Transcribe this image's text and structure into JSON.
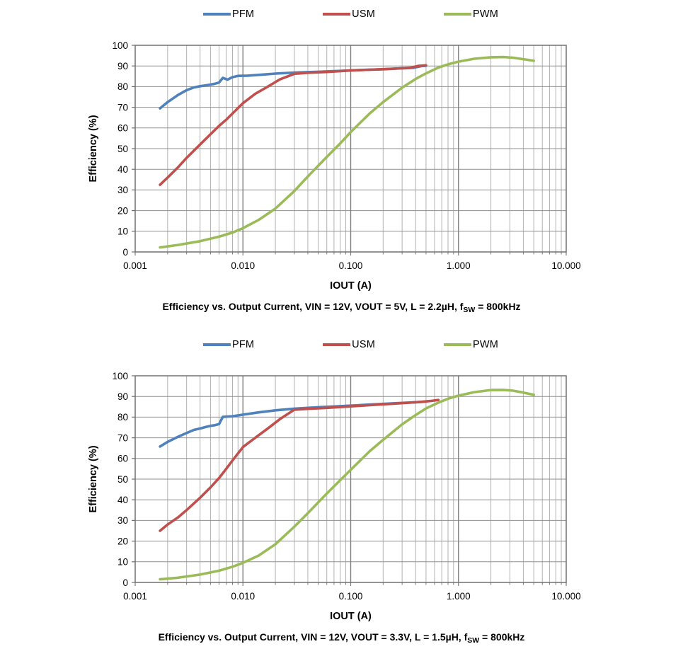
{
  "page": {
    "background": "#ffffff"
  },
  "style": {
    "grid_minor_color": "#b2b2b2",
    "grid_major_color": "#7f7f7f",
    "grid_h_color": "#8f8f8f",
    "border_color": "#707070",
    "text_color": "#000000",
    "series_stroke_width": 3.6
  },
  "chart_data": [
    {
      "type": "line",
      "title": "Efficiency vs. Output Current, VIN = 12V, VOUT = 5V, L = 2.2µH, fSW = 800kHz",
      "caption_parts": {
        "prefix": "Efficiency vs. Output Current, VIN = 12V, VOUT = 5V, L = 2.2µH, f",
        "sub": "SW",
        "suffix": " = 800kHz"
      },
      "xlabel": "IOUT (A)",
      "ylabel": "Efficiency  (%)",
      "xscale": "log",
      "xlim": [
        0.001,
        10
      ],
      "ylim": [
        0,
        100
      ],
      "x_tick_labels": [
        "0.001",
        "0.010",
        "0.100",
        "1.000",
        "10.000"
      ],
      "y_ticks": [
        0,
        10,
        20,
        30,
        40,
        50,
        60,
        70,
        80,
        90,
        100
      ],
      "grid": "major+minor",
      "legend_position": "top",
      "series": [
        {
          "name": "PFM",
          "color": "#4F81BD",
          "points": [
            [
              0.0017,
              69.5
            ],
            [
              0.002,
              72.5
            ],
            [
              0.0025,
              76
            ],
            [
              0.003,
              78.3
            ],
            [
              0.0035,
              79.6
            ],
            [
              0.004,
              80.2
            ],
            [
              0.0045,
              80.6
            ],
            [
              0.005,
              81.0
            ],
            [
              0.0055,
              81.4
            ],
            [
              0.006,
              82.0
            ],
            [
              0.0065,
              84.2
            ],
            [
              0.0072,
              83.4
            ],
            [
              0.008,
              84.6
            ],
            [
              0.009,
              85.2
            ],
            [
              0.011,
              85.3
            ],
            [
              0.014,
              85.7
            ],
            [
              0.02,
              86.3
            ],
            [
              0.03,
              86.8
            ],
            [
              0.05,
              87.2
            ],
            [
              0.08,
              87.6
            ],
            [
              0.12,
              88.0
            ],
            [
              0.2,
              88.4
            ],
            [
              0.3,
              88.9
            ],
            [
              0.38,
              89.1
            ],
            [
              0.45,
              89.9
            ],
            [
              0.5,
              90.1
            ]
          ]
        },
        {
          "name": "USM",
          "color": "#C0504D",
          "points": [
            [
              0.0017,
              32.5
            ],
            [
              0.002,
              36
            ],
            [
              0.0025,
              41
            ],
            [
              0.003,
              45.5
            ],
            [
              0.004,
              52
            ],
            [
              0.005,
              57
            ],
            [
              0.006,
              61
            ],
            [
              0.007,
              64
            ],
            [
              0.008,
              67
            ],
            [
              0.01,
              72
            ],
            [
              0.013,
              76.5
            ],
            [
              0.017,
              80
            ],
            [
              0.022,
              83.5
            ],
            [
              0.03,
              86.2
            ],
            [
              0.04,
              86.7
            ],
            [
              0.06,
              87.1
            ],
            [
              0.1,
              87.8
            ],
            [
              0.15,
              88.2
            ],
            [
              0.25,
              88.7
            ],
            [
              0.35,
              89.0
            ],
            [
              0.42,
              90.0
            ],
            [
              0.5,
              90.3
            ]
          ]
        },
        {
          "name": "PWM",
          "color": "#9BBB59",
          "points": [
            [
              0.0017,
              2.2
            ],
            [
              0.0025,
              3.4
            ],
            [
              0.004,
              5.2
            ],
            [
              0.006,
              7.4
            ],
            [
              0.008,
              9.4
            ],
            [
              0.01,
              11.5
            ],
            [
              0.014,
              15.5
            ],
            [
              0.02,
              21
            ],
            [
              0.03,
              29.5
            ],
            [
              0.04,
              36.5
            ],
            [
              0.06,
              46
            ],
            [
              0.08,
              52.5
            ],
            [
              0.1,
              58
            ],
            [
              0.15,
              67
            ],
            [
              0.2,
              72.5
            ],
            [
              0.3,
              79.5
            ],
            [
              0.4,
              83.7
            ],
            [
              0.5,
              86.4
            ],
            [
              0.65,
              89.2
            ],
            [
              0.8,
              90.8
            ],
            [
              1.0,
              92.1
            ],
            [
              1.4,
              93.5
            ],
            [
              2.0,
              94.2
            ],
            [
              2.6,
              94.3
            ],
            [
              3.2,
              94.0
            ],
            [
              4.0,
              93.3
            ],
            [
              5.0,
              92.5
            ]
          ]
        }
      ]
    },
    {
      "type": "line",
      "title": "Efficiency vs. Output Current, VIN = 12V, VOUT = 3.3V, L = 1.5µH, fSW = 800kHz",
      "caption_parts": {
        "prefix": "Efficiency vs. Output Current, VIN = 12V, VOUT = 3.3V, L = 1.5µH, f",
        "sub": "SW",
        "suffix": " = 800kHz"
      },
      "xlabel": "IOUT (A)",
      "ylabel": "Efficiency  (%)",
      "xscale": "log",
      "xlim": [
        0.001,
        10
      ],
      "ylim": [
        0,
        100
      ],
      "x_tick_labels": [
        "0.001",
        "0.010",
        "0.100",
        "1.000",
        "10.000"
      ],
      "y_ticks": [
        0,
        10,
        20,
        30,
        40,
        50,
        60,
        70,
        80,
        90,
        100
      ],
      "grid": "major+minor",
      "legend_position": "top",
      "series": [
        {
          "name": "PFM",
          "color": "#4F81BD",
          "points": [
            [
              0.0017,
              65.8
            ],
            [
              0.002,
              68
            ],
            [
              0.0025,
              70.5
            ],
            [
              0.003,
              72.3
            ],
            [
              0.0035,
              73.8
            ],
            [
              0.004,
              74.5
            ],
            [
              0.0045,
              75.2
            ],
            [
              0.005,
              75.8
            ],
            [
              0.0055,
              76.1
            ],
            [
              0.006,
              76.6
            ],
            [
              0.0065,
              80.1
            ],
            [
              0.008,
              80.4
            ],
            [
              0.01,
              81.2
            ],
            [
              0.014,
              82.3
            ],
            [
              0.02,
              83.3
            ],
            [
              0.03,
              84.1
            ],
            [
              0.05,
              84.8
            ],
            [
              0.08,
              85.3
            ],
            [
              0.12,
              85.8
            ],
            [
              0.2,
              86.4
            ],
            [
              0.3,
              86.9
            ],
            [
              0.4,
              87.2
            ],
            [
              0.5,
              87.5
            ]
          ]
        },
        {
          "name": "USM",
          "color": "#C0504D",
          "points": [
            [
              0.0017,
              25
            ],
            [
              0.002,
              28
            ],
            [
              0.0025,
              31.5
            ],
            [
              0.003,
              35
            ],
            [
              0.004,
              41
            ],
            [
              0.005,
              46
            ],
            [
              0.006,
              50.5
            ],
            [
              0.007,
              55
            ],
            [
              0.008,
              59
            ],
            [
              0.01,
              65.5
            ],
            [
              0.013,
              70
            ],
            [
              0.017,
              74.5
            ],
            [
              0.022,
              79
            ],
            [
              0.03,
              83.6
            ],
            [
              0.04,
              84.0
            ],
            [
              0.06,
              84.5
            ],
            [
              0.1,
              85.2
            ],
            [
              0.15,
              85.8
            ],
            [
              0.25,
              86.5
            ],
            [
              0.35,
              87.0
            ],
            [
              0.45,
              87.4
            ],
            [
              0.55,
              87.8
            ],
            [
              0.65,
              88.3
            ]
          ]
        },
        {
          "name": "PWM",
          "color": "#9BBB59",
          "points": [
            [
              0.0017,
              1.5
            ],
            [
              0.0025,
              2.3
            ],
            [
              0.004,
              3.8
            ],
            [
              0.006,
              5.7
            ],
            [
              0.008,
              7.6
            ],
            [
              0.01,
              9.5
            ],
            [
              0.014,
              13
            ],
            [
              0.02,
              18.5
            ],
            [
              0.03,
              27
            ],
            [
              0.04,
              33.5
            ],
            [
              0.06,
              43
            ],
            [
              0.08,
              49.5
            ],
            [
              0.1,
              54.5
            ],
            [
              0.15,
              63.5
            ],
            [
              0.2,
              69
            ],
            [
              0.3,
              76.5
            ],
            [
              0.4,
              81
            ],
            [
              0.5,
              84.2
            ],
            [
              0.65,
              87
            ],
            [
              0.8,
              88.9
            ],
            [
              1.0,
              90.4
            ],
            [
              1.4,
              92.1
            ],
            [
              2.0,
              93.1
            ],
            [
              2.6,
              93.2
            ],
            [
              3.2,
              92.8
            ],
            [
              4.0,
              91.9
            ],
            [
              5.0,
              90.8
            ]
          ]
        }
      ]
    }
  ]
}
